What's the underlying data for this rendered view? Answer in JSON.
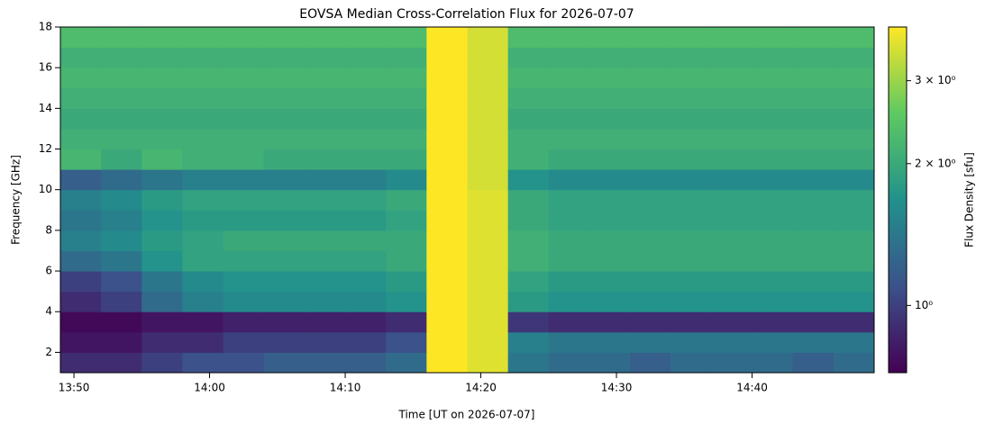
{
  "chart_data": {
    "type": "heatmap",
    "title": "EOVSA Median Cross-Correlation Flux for 2026-07-07",
    "xlabel": "Time [UT on 2026-07-07]",
    "ylabel": "Frequency [GHz]",
    "colorbar_label": "Flux Density [sfu]",
    "colormap": "viridis",
    "log_color": true,
    "x_bins": [
      "13:49",
      "13:52",
      "13:55",
      "13:58",
      "14:01",
      "14:04",
      "14:07",
      "14:10",
      "14:13",
      "14:16",
      "14:19",
      "14:22",
      "14:25",
      "14:28",
      "14:31",
      "14:34",
      "14:37",
      "14:40",
      "14:43",
      "14:46",
      "14:49"
    ],
    "y_bins": [
      1,
      2,
      3,
      4,
      5,
      6,
      7,
      8,
      9,
      10,
      11,
      12,
      13,
      14,
      15,
      16,
      17,
      18
    ],
    "z": [
      [
        0.9,
        0.9,
        1.0,
        1.1,
        1.1,
        1.2,
        1.2,
        1.2,
        1.3,
        4.0,
        3.6,
        1.4,
        1.3,
        1.3,
        1.2,
        1.3,
        1.3,
        1.3,
        1.2,
        1.3
      ],
      [
        0.8,
        0.8,
        0.9,
        0.9,
        1.0,
        1.0,
        1.0,
        1.0,
        1.1,
        4.0,
        3.6,
        1.5,
        1.4,
        1.4,
        1.4,
        1.4,
        1.4,
        1.4,
        1.4,
        1.4
      ],
      [
        0.75,
        0.75,
        0.8,
        0.8,
        0.85,
        0.85,
        0.85,
        0.85,
        0.9,
        4.0,
        3.6,
        0.95,
        0.9,
        0.9,
        0.9,
        0.9,
        0.9,
        0.9,
        0.9,
        0.9
      ],
      [
        0.9,
        1.0,
        1.3,
        1.5,
        1.6,
        1.6,
        1.6,
        1.6,
        1.7,
        4.0,
        3.6,
        1.8,
        1.7,
        1.7,
        1.7,
        1.7,
        1.7,
        1.7,
        1.7,
        1.7
      ],
      [
        1.0,
        1.1,
        1.4,
        1.6,
        1.7,
        1.7,
        1.7,
        1.7,
        1.8,
        4.0,
        3.6,
        1.9,
        1.8,
        1.8,
        1.8,
        1.8,
        1.8,
        1.8,
        1.8,
        1.8
      ],
      [
        1.3,
        1.4,
        1.7,
        1.9,
        1.9,
        1.9,
        1.9,
        1.9,
        2.0,
        4.0,
        3.6,
        2.1,
        2.0,
        2.0,
        2.0,
        2.0,
        2.0,
        2.0,
        2.0,
        2.0
      ],
      [
        1.5,
        1.6,
        1.8,
        1.9,
        2.0,
        2.0,
        2.0,
        2.0,
        2.0,
        4.0,
        3.6,
        2.1,
        2.0,
        2.0,
        2.0,
        2.0,
        2.0,
        2.0,
        2.0,
        2.0
      ],
      [
        1.4,
        1.5,
        1.7,
        1.8,
        1.8,
        1.8,
        1.8,
        1.8,
        1.9,
        4.0,
        3.6,
        2.0,
        1.9,
        1.9,
        1.9,
        1.9,
        1.9,
        1.9,
        1.9,
        1.9
      ],
      [
        1.5,
        1.6,
        1.8,
        1.9,
        1.9,
        1.9,
        1.9,
        1.9,
        2.0,
        4.0,
        3.6,
        2.0,
        1.9,
        1.9,
        1.9,
        1.9,
        1.9,
        1.9,
        1.9,
        1.9
      ],
      [
        1.2,
        1.3,
        1.4,
        1.5,
        1.5,
        1.5,
        1.5,
        1.5,
        1.6,
        4.0,
        3.5,
        1.7,
        1.6,
        1.6,
        1.6,
        1.6,
        1.6,
        1.6,
        1.6,
        1.6
      ],
      [
        2.2,
        2.0,
        2.2,
        2.1,
        2.1,
        2.0,
        2.0,
        2.0,
        2.0,
        4.0,
        3.5,
        2.1,
        2.0,
        2.0,
        2.0,
        2.0,
        2.0,
        2.0,
        2.0,
        2.0
      ],
      [
        2.1,
        2.1,
        2.1,
        2.1,
        2.1,
        2.1,
        2.1,
        2.1,
        2.1,
        4.0,
        3.5,
        2.1,
        2.1,
        2.1,
        2.1,
        2.1,
        2.1,
        2.1,
        2.1,
        2.1
      ],
      [
        2.0,
        2.0,
        2.0,
        2.0,
        2.0,
        2.0,
        2.0,
        2.0,
        2.0,
        4.0,
        3.5,
        2.0,
        2.0,
        2.0,
        2.0,
        2.0,
        2.0,
        2.0,
        2.0,
        2.0
      ],
      [
        2.1,
        2.1,
        2.1,
        2.1,
        2.1,
        2.1,
        2.1,
        2.1,
        2.1,
        4.0,
        3.5,
        2.1,
        2.1,
        2.1,
        2.1,
        2.1,
        2.1,
        2.1,
        2.1,
        2.1
      ],
      [
        2.2,
        2.2,
        2.2,
        2.2,
        2.2,
        2.2,
        2.2,
        2.2,
        2.2,
        4.0,
        3.5,
        2.2,
        2.2,
        2.2,
        2.2,
        2.2,
        2.2,
        2.2,
        2.2,
        2.2
      ],
      [
        2.1,
        2.1,
        2.1,
        2.1,
        2.1,
        2.1,
        2.1,
        2.1,
        2.1,
        4.0,
        3.5,
        2.1,
        2.1,
        2.1,
        2.1,
        2.1,
        2.1,
        2.1,
        2.1,
        2.1
      ],
      [
        2.3,
        2.3,
        2.3,
        2.3,
        2.3,
        2.3,
        2.3,
        2.3,
        2.3,
        4.0,
        3.5,
        2.3,
        2.3,
        2.3,
        2.3,
        2.3,
        2.3,
        2.3,
        2.3,
        2.3
      ]
    ],
    "xlim": [
      "13:49",
      "14:49"
    ],
    "xticks": [
      "13:50",
      "14:00",
      "14:10",
      "14:20",
      "14:30",
      "14:40"
    ],
    "ylim": [
      1,
      18
    ],
    "yticks": [
      2,
      4,
      6,
      8,
      10,
      12,
      14,
      16,
      18
    ],
    "zlim": [
      0.72,
      3.9
    ],
    "zticks": [
      {
        "value": 1,
        "label": "10⁰"
      },
      {
        "value": 2,
        "label": "2 × 10⁰"
      },
      {
        "value": 3,
        "label": "3 × 10⁰"
      }
    ]
  }
}
